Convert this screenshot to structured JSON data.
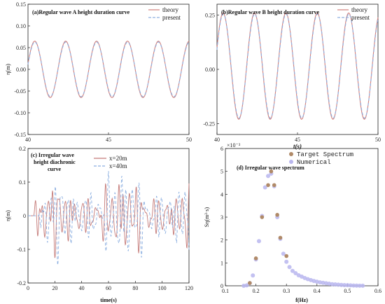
{
  "colors": {
    "theory": "#d2807c",
    "present": "#8fb0e0",
    "x20": "#c47a78",
    "x40": "#8aaee0",
    "target": "#b08a68",
    "numerical": "#b9b6ee",
    "axis": "#222222"
  },
  "chart_data": [
    {
      "id": "a",
      "type": "line",
      "title": "(a)Regular wave A height duration curve",
      "xlabel": "",
      "ylabel": "η(m)",
      "xlim": [
        40,
        50
      ],
      "ylim": [
        -0.15,
        0.15
      ],
      "xticks": [
        "40",
        "45",
        "50"
      ],
      "yticks": [
        "-0.15",
        "-0.10",
        "-0.05",
        "0.00",
        "0.05",
        "0.10",
        "0.15"
      ],
      "series": [
        {
          "name": "theory",
          "style": "solid",
          "amplitude": 0.065,
          "mean": 0.0,
          "period": 1.92,
          "phase": 0.2
        },
        {
          "name": "present",
          "style": "dashed",
          "amplitude": 0.063,
          "mean": 0.0,
          "period": 1.92,
          "phase": 0.18
        }
      ]
    },
    {
      "id": "b",
      "type": "line",
      "title": "(b)Regular wave B height duration curve",
      "xlabel": "t(s)",
      "ylabel": "",
      "xlim": [
        40,
        50
      ],
      "ylim": [
        -0.3,
        0.3
      ],
      "xticks": [
        "40",
        "45",
        "50"
      ],
      "yticks": [
        "-0.25",
        "0.00",
        "0.25"
      ],
      "series": [
        {
          "name": "theory",
          "style": "solid",
          "amplitude": 0.245,
          "mean": 0.015,
          "period": 1.95,
          "phase": 0.35
        },
        {
          "name": "present",
          "style": "dashed",
          "amplitude": 0.24,
          "mean": 0.015,
          "period": 1.95,
          "phase": 0.32
        }
      ]
    },
    {
      "id": "c",
      "type": "line",
      "title": "(c) Irregular wave height diachronic curve",
      "xlabel": "time(s)",
      "ylabel": "η(m)",
      "xlim": [
        0,
        120
      ],
      "ylim": [
        -0.2,
        0.2
      ],
      "xticks": [
        "0",
        "20",
        "40",
        "60",
        "80",
        "100",
        "120"
      ],
      "yticks": [
        "-0.2",
        "-0.1",
        "0",
        "0.1",
        "0.2"
      ],
      "series": [
        {
          "name": "x=20m",
          "style": "solid",
          "start": 8
        },
        {
          "name": "x=40m",
          "style": "dashed",
          "start": 12
        }
      ]
    },
    {
      "id": "d",
      "type": "scatter",
      "title": "(d) Irregular wave spectrum",
      "xlabel": "f(Hz)",
      "ylabel": "Sη(m²·s)",
      "exponent_label": "×10⁻³",
      "xlim": [
        0.1,
        0.6
      ],
      "ylim": [
        0,
        6
      ],
      "xticks": [
        "0.1",
        "0.2",
        "0.3",
        "0.4",
        "0.5",
        "0.6"
      ],
      "yticks": [
        "0",
        "1",
        "2",
        "3",
        "4",
        "5",
        "6"
      ],
      "series": [
        {
          "name": "Target Spectrum",
          "x": [
            0.18,
            0.2,
            0.22,
            0.24,
            0.25,
            0.26,
            0.27,
            0.28,
            0.3
          ],
          "y": [
            0.12,
            1.2,
            3.0,
            4.4,
            5.0,
            4.4,
            3.1,
            2.1,
            1.3
          ]
        },
        {
          "name": "Numerical",
          "x": [
            0.16,
            0.17,
            0.18,
            0.19,
            0.2,
            0.21,
            0.22,
            0.23,
            0.24,
            0.25,
            0.26,
            0.27,
            0.28,
            0.29,
            0.3,
            0.31,
            0.32,
            0.33,
            0.34,
            0.35,
            0.36,
            0.37,
            0.38,
            0.39,
            0.4,
            0.41,
            0.42,
            0.43,
            0.44,
            0.45,
            0.46,
            0.47,
            0.48,
            0.49,
            0.5,
            0.51,
            0.52,
            0.53,
            0.54,
            0.55
          ],
          "y": [
            0.0,
            0.02,
            0.12,
            0.45,
            1.15,
            1.95,
            3.05,
            4.3,
            4.8,
            4.9,
            4.35,
            3.0,
            2.05,
            1.4,
            1.05,
            0.82,
            0.65,
            0.55,
            0.46,
            0.4,
            0.34,
            0.29,
            0.25,
            0.21,
            0.18,
            0.15,
            0.13,
            0.11,
            0.09,
            0.07,
            0.06,
            0.05,
            0.04,
            0.03,
            0.025,
            0.02,
            0.012,
            0.008,
            0.004,
            0.002
          ]
        }
      ]
    }
  ]
}
